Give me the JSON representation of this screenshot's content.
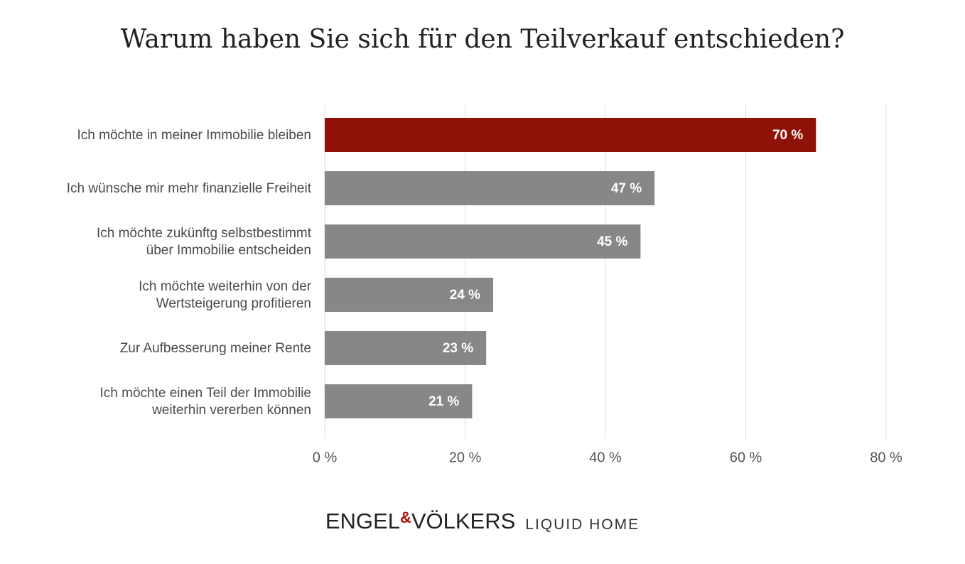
{
  "chart_data": {
    "type": "barh",
    "title": "Warum haben Sie sich für den Teilverkauf entschieden?",
    "categories": [
      "Ich möchte in meiner Immobilie bleiben",
      "Ich wünsche mir mehr finanzielle Freiheit",
      "Ich möchte zukünftg selbstbestimmt\nüber Immobilie entscheiden",
      "Ich möchte weiterhin von der\nWertsteigerung profitieren",
      "Zur Aufbesserung meiner Rente",
      "Ich möchte einen Teil der Immobilie\nweiterhin vererben können"
    ],
    "values": [
      70,
      47,
      45,
      24,
      23,
      21
    ],
    "value_labels": [
      "70 %",
      "47 %",
      "45 %",
      "24 %",
      "23 %",
      "21 %"
    ],
    "colors": [
      "#8e1208",
      "#878787",
      "#878787",
      "#878787",
      "#878787",
      "#878787"
    ],
    "xlim": [
      0,
      80
    ],
    "xticks": [
      {
        "value": 0,
        "label": "0 %"
      },
      {
        "value": 20,
        "label": "20 %"
      },
      {
        "value": 40,
        "label": "40 %"
      },
      {
        "value": 60,
        "label": "60 %"
      },
      {
        "value": 80,
        "label": "80 %"
      }
    ],
    "grid": true
  },
  "brand": {
    "parts": [
      "ENGEL",
      "&",
      "VÖLKERS"
    ],
    "tagline": "LIQUID HOME"
  }
}
